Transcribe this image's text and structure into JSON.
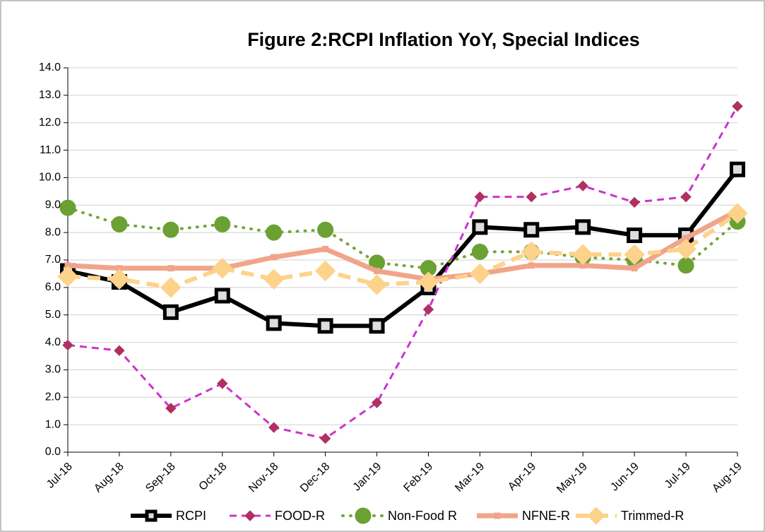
{
  "chart_data": {
    "type": "line",
    "title": "Figure 2:RCPI Inflation YoY, Special Indices",
    "categories": [
      "Jul-18",
      "Aug-18",
      "Sep-18",
      "Oct-18",
      "Nov-18",
      "Dec-18",
      "Jan-19",
      "Feb-19",
      "Mar-19",
      "Apr-19",
      "May-19",
      "Jun-19",
      "Jul-19",
      "Aug-19"
    ],
    "series": [
      {
        "name": "RCPI",
        "color": "#000000",
        "values": [
          6.6,
          6.2,
          5.1,
          5.7,
          4.7,
          4.6,
          4.6,
          6.0,
          8.2,
          8.1,
          8.2,
          7.9,
          7.9,
          10.3
        ]
      },
      {
        "name": "FOOD-R",
        "color": "#cc33cc",
        "values": [
          3.9,
          3.7,
          1.6,
          2.5,
          0.9,
          0.5,
          1.8,
          5.2,
          9.3,
          9.3,
          9.7,
          9.1,
          9.3,
          12.6
        ]
      },
      {
        "name": "Non-Food R",
        "color": "#77a33a",
        "values": [
          8.9,
          8.3,
          8.1,
          8.3,
          8.0,
          8.1,
          6.9,
          6.7,
          7.3,
          7.3,
          7.1,
          7.0,
          6.8,
          8.4
        ]
      },
      {
        "name": "NFNE-R",
        "color": "#f0a58a",
        "values": [
          6.8,
          6.7,
          6.7,
          6.7,
          7.1,
          7.4,
          6.6,
          6.3,
          6.5,
          6.8,
          6.8,
          6.7,
          7.8,
          8.8
        ]
      },
      {
        "name": "Trimmed-R",
        "color": "#fdd28a",
        "values": [
          6.4,
          6.3,
          6.0,
          6.7,
          6.3,
          6.6,
          6.1,
          6.2,
          6.5,
          7.3,
          7.2,
          7.2,
          7.4,
          8.7
        ]
      }
    ],
    "ylim": [
      0,
      14
    ],
    "yticks": [
      {
        "value": 0,
        "label": "0.0"
      },
      {
        "value": 1,
        "label": "1.0"
      },
      {
        "value": 2,
        "label": "2.0"
      },
      {
        "value": 3,
        "label": "3.0"
      },
      {
        "value": 4,
        "label": "4.0"
      },
      {
        "value": 5,
        "label": "5.0"
      },
      {
        "value": 6,
        "label": "6.0"
      },
      {
        "value": 7,
        "label": "7.0"
      },
      {
        "value": 8,
        "label": "8.0"
      },
      {
        "value": 9,
        "label": "9.0"
      },
      {
        "value": 10,
        "label": "10.0"
      },
      {
        "value": 11,
        "label": "11.0"
      },
      {
        "value": 12,
        "label": "12.0"
      },
      {
        "value": 13,
        "label": "13.0"
      },
      {
        "value": 14,
        "label": "14.0"
      }
    ],
    "grid": true,
    "legend": "bottom"
  }
}
